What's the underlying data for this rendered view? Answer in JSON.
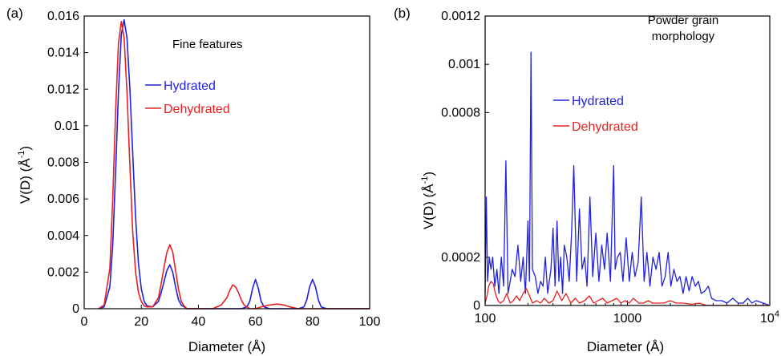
{
  "chart_data": [
    {
      "type": "line",
      "panel": "(a)",
      "annotation": "Fine features",
      "xlabel": "Diameter (Å)",
      "ylabel": "V(D) (Å",
      "ylabel_sup": "-1",
      "ylabel_close": ")",
      "xlim": [
        0,
        100
      ],
      "ylim": [
        0,
        0.016
      ],
      "xscale": "linear",
      "grid": false,
      "legend_position": "upper-middle",
      "x_ticks": [
        "0",
        "20",
        "40",
        "60",
        "80",
        "100"
      ],
      "y_ticks": [
        "0",
        "0.002",
        "0.004",
        "0.006",
        "0.008",
        "0.01",
        "0.012",
        "0.014",
        "0.016"
      ],
      "series": [
        {
          "name": "Hydrated",
          "color": "#2020e0",
          "x": [
            5,
            7,
            9,
            10,
            11,
            12,
            13,
            14,
            15,
            16,
            17,
            18,
            19,
            20,
            21,
            22,
            24,
            26,
            27,
            28,
            29,
            30,
            31,
            32,
            33,
            34,
            36,
            40,
            45,
            50,
            55,
            57,
            58,
            59,
            60,
            61,
            62,
            63,
            65,
            70,
            75,
            77,
            78,
            79,
            80,
            81,
            82,
            83,
            85,
            90,
            100
          ],
          "y": [
            0,
            0.0001,
            0.0012,
            0.0035,
            0.0075,
            0.0118,
            0.015,
            0.0158,
            0.0148,
            0.012,
            0.0085,
            0.005,
            0.0025,
            0.0011,
            0.0004,
            0.00015,
            0.0001,
            0.0004,
            0.0009,
            0.0015,
            0.0021,
            0.0024,
            0.002,
            0.0012,
            0.0005,
            0.0002,
            0,
            0,
            0,
            0,
            0,
            0.0001,
            0.0004,
            0.0011,
            0.0016,
            0.0011,
            0.0004,
            0.0001,
            0,
            0,
            0,
            0.0001,
            0.0005,
            0.0012,
            0.0016,
            0.0012,
            0.0005,
            0.0001,
            0,
            0,
            0
          ]
        },
        {
          "name": "Dehydrated",
          "color": "#e82020",
          "x": [
            5,
            7,
            9,
            10,
            11,
            12,
            13,
            14,
            15,
            16,
            17,
            18,
            19,
            20,
            21,
            22,
            24,
            26,
            27,
            28,
            29,
            30,
            31,
            32,
            33,
            34,
            35,
            36,
            38,
            40,
            45,
            48,
            50,
            51,
            52,
            53,
            54,
            55,
            56,
            58,
            60,
            62,
            65,
            67,
            68,
            70,
            72,
            75,
            80,
            90,
            100
          ],
          "y": [
            0,
            0.0002,
            0.0022,
            0.006,
            0.0108,
            0.0145,
            0.0157,
            0.0148,
            0.0118,
            0.0078,
            0.0042,
            0.002,
            0.0009,
            0.0004,
            0.00015,
            0.0001,
            0.0001,
            0.0006,
            0.0014,
            0.0023,
            0.0031,
            0.0035,
            0.0031,
            0.0021,
            0.0011,
            0.0004,
            0.00015,
            0,
            0,
            0,
            0,
            0.0002,
            0.0006,
            0.001,
            0.0013,
            0.0012,
            0.0009,
            0.0005,
            0.0002,
            0,
            0,
            0.0001,
            0.0002,
            0.00025,
            0.00025,
            0.0002,
            0.0001,
            0,
            0,
            0,
            0
          ]
        }
      ]
    },
    {
      "type": "line",
      "panel": "(b)",
      "annotation_lines": [
        "Powder grain",
        "morphology"
      ],
      "xlabel": "Diameter (Å)",
      "ylabel": "V(D) (Å",
      "ylabel_sup": "-1",
      "ylabel_close": ")",
      "xlim": [
        100,
        10000
      ],
      "ylim": [
        0,
        0.0012
      ],
      "xscale": "log",
      "grid": false,
      "legend_position": "upper-middle",
      "x_ticks": [
        {
          "value": 100,
          "base": "100",
          "sup": ""
        },
        {
          "value": 1000,
          "base": "1000",
          "sup": ""
        },
        {
          "value": 10000,
          "base": "10",
          "sup": "4"
        }
      ],
      "y_ticks": [
        {
          "value": 0,
          "label": "0"
        },
        {
          "value": 0.0002,
          "label": "0.0002"
        },
        {
          "value": 0.0008,
          "label": "0.0008"
        },
        {
          "value": 0.001,
          "label": "0.001"
        },
        {
          "value": 0.0012,
          "label": "0.0012"
        }
      ],
      "series": [
        {
          "name": "Hydrated",
          "color": "#2020e0",
          "x": [
            100,
            102,
            104,
            107,
            110,
            113,
            117,
            121,
            125,
            130,
            135,
            140,
            145,
            150,
            155,
            162,
            170,
            178,
            185,
            192,
            200,
            205,
            210,
            215,
            225,
            235,
            245,
            255,
            265,
            275,
            290,
            300,
            310,
            320,
            330,
            340,
            350,
            360,
            375,
            390,
            405,
            420,
            440,
            460,
            480,
            500,
            520,
            545,
            570,
            600,
            630,
            660,
            690,
            720,
            760,
            800,
            820,
            850,
            890,
            930,
            980,
            1030,
            1080,
            1130,
            1190,
            1250,
            1310,
            1370,
            1440,
            1510,
            1590,
            1670,
            1750,
            1840,
            1930,
            2020,
            2120,
            2230,
            2340,
            2460,
            2580,
            2710,
            2850,
            3000,
            3150,
            3300,
            3500,
            3700,
            3900,
            4200,
            4600,
            5000,
            5500,
            6000,
            6500,
            7000,
            7500,
            8000,
            9000,
            10000
          ],
          "y": [
            5e-05,
            0.00045,
            0.0001,
            0.0002,
            0.00015,
            0.0002,
            8e-05,
            0.00015,
            5e-05,
            0.0002,
            8e-05,
            0.0006,
            5e-05,
            0.0001,
            0.00015,
            0.00012,
            0.00025,
            0.0001,
            0.0002,
            5e-05,
            0.00035,
            0.0001,
            0.00105,
            0.00015,
            0.00012,
            5e-05,
            0.0001,
            8e-05,
            0.0002,
            5e-05,
            0.00015,
            0.00032,
            8e-05,
            0.00035,
            0.0001,
            0.0002,
            5e-05,
            0.00025,
            0.0002,
            0.0001,
            0.0003,
            0.00058,
            0.0001,
            0.0004,
            0.00015,
            0.0002,
            8e-05,
            0.00045,
            0.00012,
            0.0003,
            0.0001,
            0.00025,
            0.00015,
            0.0003,
            0.0001,
            0.00058,
            0.00015,
            0.0002,
            0.00022,
            0.0001,
            0.00028,
            0.0001,
            0.00022,
            0.00012,
            0.00018,
            0.00045,
            0.0001,
            0.00022,
            8e-05,
            0.0002,
            0.00015,
            0.00022,
            8e-05,
            0.00012,
            0.00022,
            8e-05,
            0.00015,
            0.0001,
            0.00012,
            5e-05,
            0.00012,
            6e-05,
            0.00012,
            8e-05,
            0.0001,
            5e-05,
            6e-05,
            8e-05,
            3e-05,
            2e-05,
            2e-05,
            1e-05,
            3e-05,
            1e-05,
            1e-05,
            3e-05,
            1e-05,
            2e-05,
            1e-05,
            0
          ]
        },
        {
          "name": "Dehydrated",
          "color": "#e82020",
          "x": [
            100,
            103,
            106,
            110,
            114,
            118,
            123,
            128,
            135,
            142,
            150,
            158,
            166,
            175,
            185,
            195,
            205,
            215,
            230,
            245,
            260,
            280,
            300,
            320,
            345,
            370,
            400,
            430,
            460,
            500,
            540,
            580,
            620,
            670,
            720,
            780,
            840,
            900,
            960,
            1030,
            1100,
            1200,
            1300,
            1400,
            1500,
            1650,
            1800,
            2000,
            2200,
            2500,
            2800,
            3200,
            3600,
            4000,
            5000,
            6000,
            8000,
            10000
          ],
          "y": [
            1e-05,
            4e-05,
            8e-05,
            0.0001,
            9e-05,
            5e-05,
            2e-05,
            1e-05,
            2e-05,
            5e-05,
            1e-05,
            2e-05,
            4e-05,
            2e-05,
            5e-05,
            7e-05,
            4e-05,
            1e-05,
            2e-05,
            1e-05,
            3e-05,
            1e-05,
            2e-05,
            6e-05,
            2e-05,
            5e-05,
            1e-05,
            3e-05,
            1e-05,
            2e-05,
            4e-05,
            1e-05,
            2e-05,
            3e-05,
            1e-05,
            2e-05,
            3e-05,
            1e-05,
            2e-05,
            1e-05,
            3e-05,
            1e-05,
            1e-05,
            2e-05,
            1e-05,
            1e-05,
            1e-05,
            2e-05,
            1e-05,
            1e-05,
            5e-06,
            1e-05,
            0,
            0,
            0,
            0,
            0,
            0
          ]
        }
      ]
    }
  ]
}
